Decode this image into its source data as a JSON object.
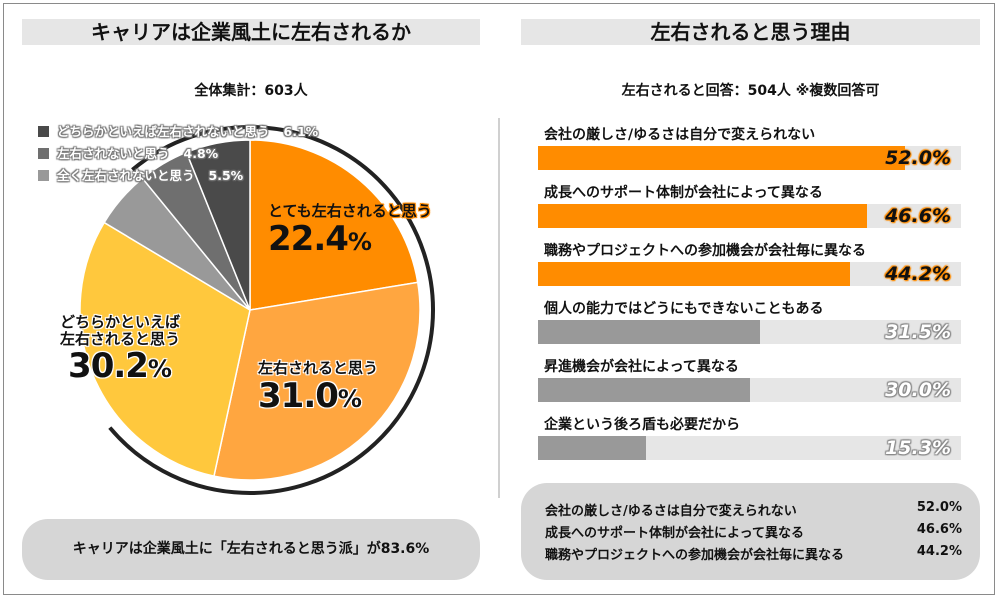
{
  "left_panel": {
    "title": "キャリアは企業風土に左右されるか",
    "subtitle": "全体集計：603人",
    "summary": "キャリアは企業風土に「左右されると思う派」が83.6%"
  },
  "right_panel": {
    "title": "左右されると思う理由",
    "subtitle": "左右されると回答：504人 ※複数回答可",
    "summary_rows": [
      {
        "label": "会社の厳しさ/ゆるさは自分で変えられない",
        "value": "52.0%"
      },
      {
        "label": "成長へのサポート体制が会社によって異なる",
        "value": "46.6%"
      },
      {
        "label": "職務やプロジェクトへの参加機会が会社毎に異なる",
        "value": "44.2%"
      }
    ]
  },
  "chart_data": [
    {
      "type": "pie",
      "slices": [
        {
          "label": "とても左右されると思う",
          "value": 22.4,
          "display": "22.4",
          "color": "#ff8c00"
        },
        {
          "label": "左右されると思う",
          "value": 31.0,
          "display": "31.0",
          "color": "#ffa640"
        },
        {
          "label": "どちらかといえば左右されると思う",
          "display_lines": [
            "どちらかといえば",
            "左右されると思う"
          ],
          "value": 30.2,
          "display": "30.2",
          "color": "#ffc83d"
        },
        {
          "label": "全く左右されないと思う",
          "value": 5.5,
          "display": "5.5%",
          "color": "#999999"
        },
        {
          "label": "左右されないと思う",
          "value": 4.8,
          "display": "4.8%",
          "color": "#6f6f6f"
        },
        {
          "label": "どちらかといえば左右されないと思う",
          "value": 6.1,
          "display": "6.1%",
          "color": "#4a4a4a"
        }
      ],
      "pct_symbol": "%",
      "legend_order": [
        5,
        4,
        3
      ]
    },
    {
      "type": "bar",
      "orientation": "horizontal",
      "xlim": [
        0,
        60
      ],
      "categories": [
        "会社の厳しさ/ゆるさは自分で変えられない",
        "成長へのサポート体制が会社によって異なる",
        "職務やプロジェクトへの参加機会が会社毎に異なる",
        "個人の能力ではどうにもできないこともある",
        "昇進機会が会社によって異なる",
        "企業という後ろ盾も必要だから"
      ],
      "values": [
        52.0,
        46.6,
        44.2,
        31.5,
        30.0,
        15.3
      ],
      "display": [
        "52.0%",
        "46.6%",
        "44.2%",
        "31.5%",
        "30.0%",
        "15.3%"
      ],
      "colors": [
        "#ff8c00",
        "#ff8c00",
        "#ff8c00",
        "#999999",
        "#999999",
        "#999999"
      ]
    }
  ]
}
